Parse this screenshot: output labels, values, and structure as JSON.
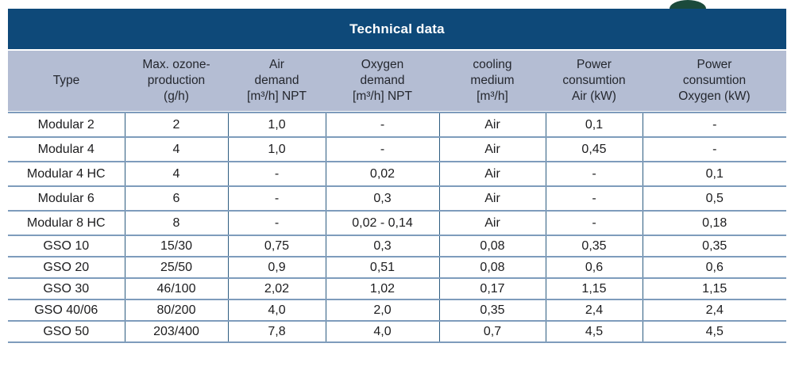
{
  "title": "Technical data",
  "logo": {
    "name": "green-logo-fragment"
  },
  "colors": {
    "title_bar": "#0e4979",
    "title_text": "#ffffff",
    "header_band": "#b4bdd3",
    "header_text": "#24272e",
    "body_text": "#1c1c1e",
    "row_line": "#7e9cbc",
    "column_line": "#2d5c80",
    "background": "#ffffff",
    "logo_green": "#1b4a3c"
  },
  "table": {
    "header": [
      "Type",
      "Max. ozone-\nproduction\n(g/h)",
      "Air\ndemand\n[m³/h] NPT",
      "Oxygen\ndemand\n[m³/h] NPT",
      "cooling\nmedium\n[m³/h]",
      "Power\nconsumtion\nAir (kW)",
      "Power\nconsumtion\nOxygen (kW)"
    ],
    "rows": [
      {
        "group": "modular",
        "cells": [
          "Modular 2",
          "2",
          "1,0",
          "-",
          "Air",
          "0,1",
          "-"
        ]
      },
      {
        "group": "modular",
        "cells": [
          "Modular 4",
          "4",
          "1,0",
          "-",
          "Air",
          "0,45",
          "-"
        ]
      },
      {
        "group": "modular",
        "cells": [
          "Modular 4 HC",
          "4",
          "-",
          "0,02",
          "Air",
          "-",
          "0,1"
        ]
      },
      {
        "group": "modular",
        "cells": [
          "Modular 6",
          "6",
          "-",
          "0,3",
          "Air",
          "-",
          "0,5"
        ]
      },
      {
        "group": "modular",
        "cells": [
          "Modular 8 HC",
          "8",
          "-",
          "0,02 - 0,14",
          "Air",
          "-",
          "0,18"
        ]
      },
      {
        "group": "gso",
        "cells": [
          "GSO 10",
          "15/30",
          "0,75",
          "0,3",
          "0,08",
          "0,35",
          "0,35"
        ]
      },
      {
        "group": "gso",
        "cells": [
          "GSO 20",
          "25/50",
          "0,9",
          "0,51",
          "0,08",
          "0,6",
          "0,6"
        ]
      },
      {
        "group": "gso",
        "cells": [
          "GSO 30",
          "46/100",
          "2,02",
          "1,02",
          "0,17",
          "1,15",
          "1,15"
        ]
      },
      {
        "group": "gso",
        "cells": [
          "GSO 40/06",
          "80/200",
          "4,0",
          "2,0",
          "0,35",
          "2,4",
          "2,4"
        ]
      },
      {
        "group": "gso",
        "cells": [
          "GSO 50",
          "203/400",
          "7,8",
          "4,0",
          "0,7",
          "4,5",
          "4,5"
        ]
      }
    ]
  }
}
